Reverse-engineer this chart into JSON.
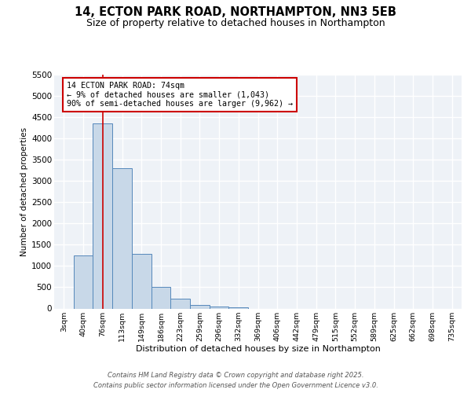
{
  "title1": "14, ECTON PARK ROAD, NORTHAMPTON, NN3 5EB",
  "title2": "Size of property relative to detached houses in Northampton",
  "xlabel": "Distribution of detached houses by size in Northampton",
  "ylabel": "Number of detached properties",
  "categories": [
    "3sqm",
    "40sqm",
    "76sqm",
    "113sqm",
    "149sqm",
    "186sqm",
    "223sqm",
    "259sqm",
    "296sqm",
    "332sqm",
    "369sqm",
    "406sqm",
    "442sqm",
    "479sqm",
    "515sqm",
    "552sqm",
    "589sqm",
    "625sqm",
    "662sqm",
    "698sqm",
    "735sqm"
  ],
  "values": [
    0,
    1250,
    4350,
    3300,
    1280,
    500,
    225,
    90,
    55,
    30,
    0,
    0,
    0,
    0,
    0,
    0,
    0,
    0,
    0,
    0,
    0
  ],
  "bar_color": "#c8d8e8",
  "bar_edge_color": "#5588bb",
  "vline_x_index": 2,
  "vline_color": "#cc0000",
  "ylim": [
    0,
    5500
  ],
  "yticks": [
    0,
    500,
    1000,
    1500,
    2000,
    2500,
    3000,
    3500,
    4000,
    4500,
    5000,
    5500
  ],
  "annotation_text": "14 ECTON PARK ROAD: 74sqm\n← 9% of detached houses are smaller (1,043)\n90% of semi-detached houses are larger (9,962) →",
  "annotation_box_color": "#cc0000",
  "footer1": "Contains HM Land Registry data © Crown copyright and database right 2025.",
  "footer2": "Contains public sector information licensed under the Open Government Licence v3.0.",
  "bg_color": "#eef2f7",
  "grid_color": "#ffffff",
  "title1_fontsize": 10.5,
  "title2_fontsize": 9
}
